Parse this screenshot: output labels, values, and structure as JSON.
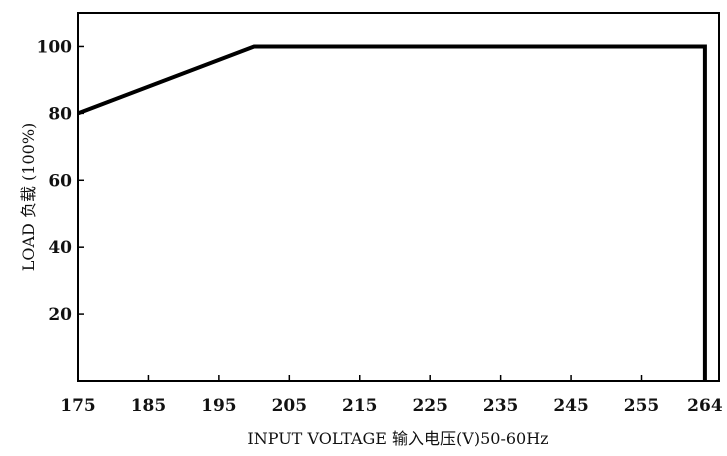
{
  "chart_data": {
    "type": "line",
    "title": "",
    "xlabel": "INPUT VOLTAGE 输入电压(V)50-60Hz",
    "ylabel": "LOAD 负载 (100%)",
    "x_ticks": [
      "175",
      "185",
      "195",
      "205",
      "215",
      "225",
      "235",
      "245",
      "255",
      "264"
    ],
    "y_ticks": [
      "20",
      "40",
      "60",
      "80",
      "100"
    ],
    "xlim": [
      175,
      266
    ],
    "ylim": [
      0,
      110
    ],
    "grid": false,
    "series": [
      {
        "x": [
          175,
          200,
          264,
          264
        ],
        "y": [
          80,
          100,
          100,
          0
        ]
      }
    ]
  }
}
